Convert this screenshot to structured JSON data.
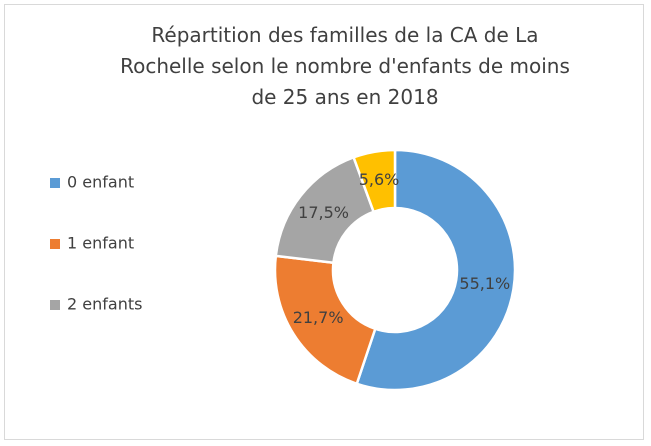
{
  "chart_data": {
    "type": "donut",
    "title": "Répartition des familles de la CA de La Rochelle selon le nombre d'enfants de moins de 25 ans en 2018",
    "categories": [
      "0 enfant",
      "1 enfant",
      "2 enfants",
      null
    ],
    "values": [
      55.1,
      21.7,
      17.5,
      5.6
    ],
    "value_labels": [
      "55,1%",
      "21,7%",
      "17,5%",
      "5,6%"
    ],
    "colors": [
      "#5b9bd5",
      "#ed7d31",
      "#a5a5a5",
      "#ffc000"
    ],
    "legend": "left"
  }
}
